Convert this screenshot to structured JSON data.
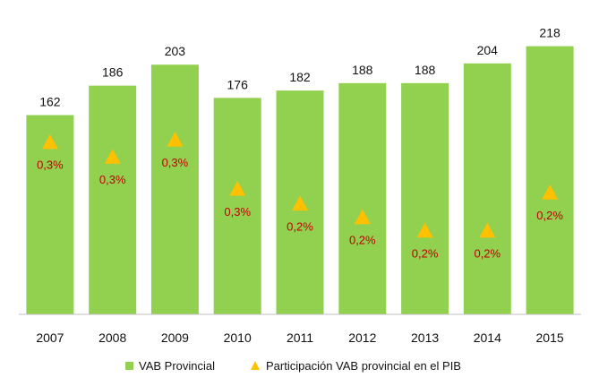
{
  "chart_data": {
    "type": "bar",
    "title": "",
    "xlabel": "",
    "ylabel": "",
    "categories": [
      "2007",
      "2008",
      "2009",
      "2010",
      "2011",
      "2012",
      "2013",
      "2014",
      "2015"
    ],
    "series": [
      {
        "name": "VAB Provincial",
        "kind": "bar",
        "color": "#92d050",
        "values": [
          162,
          186,
          203,
          176,
          182,
          188,
          188,
          204,
          218
        ],
        "labels": [
          "162",
          "186",
          "203",
          "176",
          "182",
          "188",
          "188",
          "204",
          "218"
        ]
      },
      {
        "name": "Participación VAB provincial en el PIB",
        "kind": "marker",
        "marker": "triangle",
        "color": "#ffc000",
        "label_color": "#c00000",
        "values": [
          0.3,
          0.3,
          0.3,
          0.3,
          0.2,
          0.2,
          0.2,
          0.2,
          0.2
        ],
        "labels": [
          "0,3%",
          "0,3%",
          "0,3%",
          "0,3%",
          "0,2%",
          "0,2%",
          "0,2%",
          "0,2%",
          "0,2%"
        ],
        "plotted_on_bar_scale": [
          140,
          128,
          142,
          102,
          90,
          79,
          68,
          68,
          99
        ]
      }
    ],
    "ylim": [
      0,
      225
    ],
    "grid": false,
    "legend": "bottom",
    "axis_color": "#bfbfbf"
  }
}
